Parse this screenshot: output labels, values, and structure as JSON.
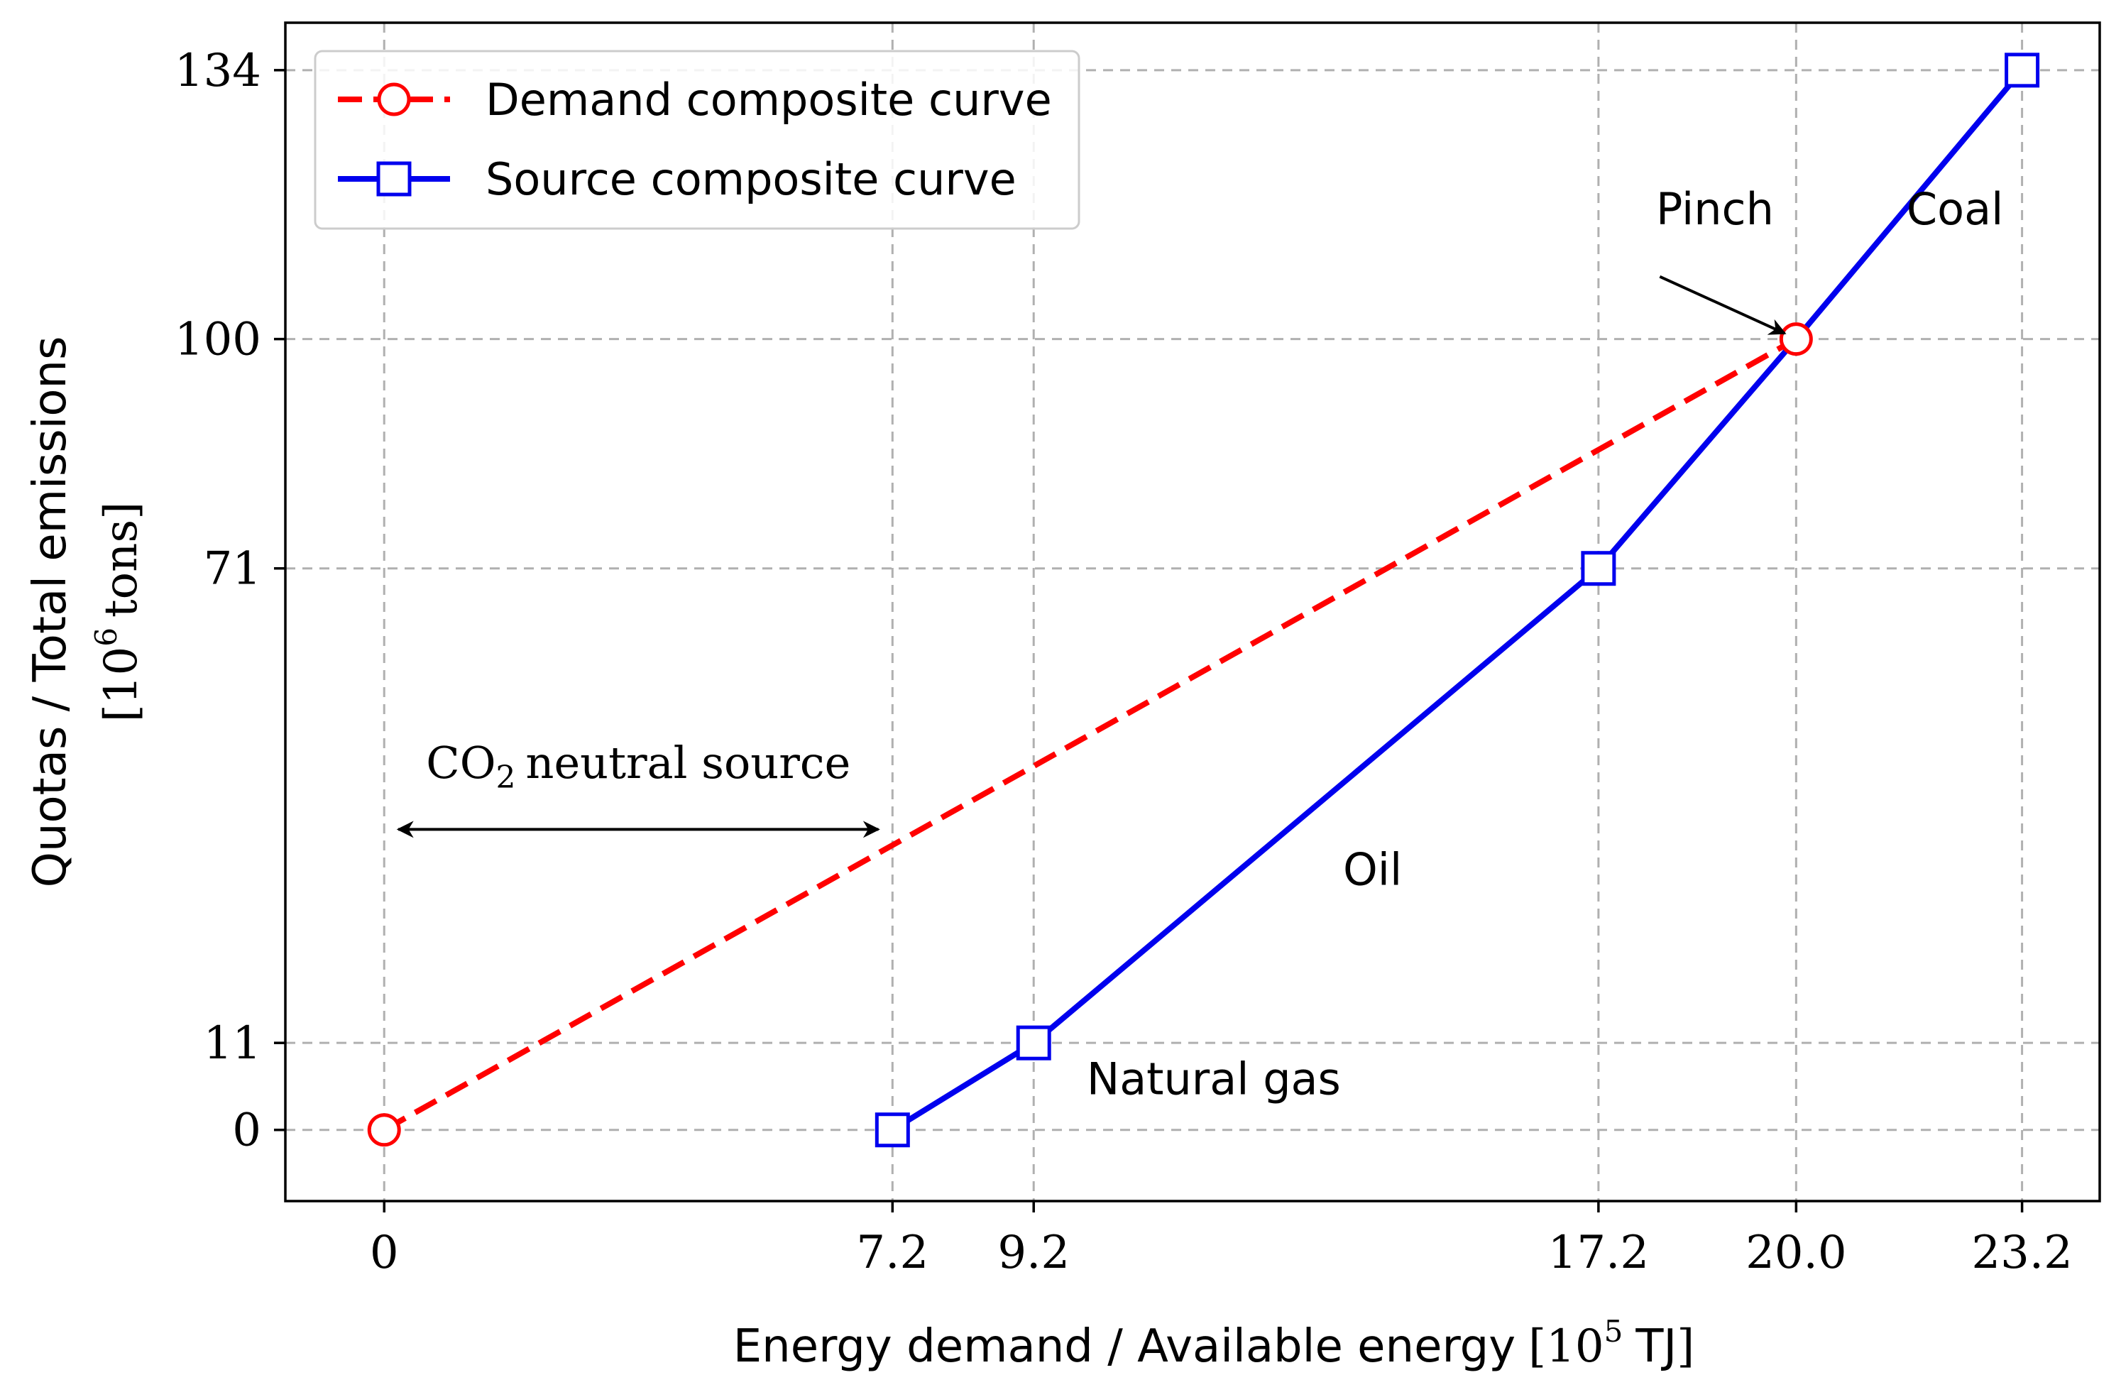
{
  "chart_data": {
    "type": "line",
    "xlabel": "Energy demand / Available energy",
    "xlabel_unit_base": "10",
    "xlabel_unit_exp": "5",
    "xlabel_unit_tail": "TJ",
    "ylabel_line1": "Quotas / Total emissions",
    "ylabel_unit_base": "10",
    "ylabel_unit_exp": "6",
    "ylabel_unit_tail": "tons",
    "xlim": [
      -1.4,
      24.3
    ],
    "ylim": [
      -9,
      140
    ],
    "xticks": [
      0,
      7.2,
      9.2,
      17.2,
      20.0,
      23.2
    ],
    "xtick_labels": [
      "0",
      "7.2",
      "9.2",
      "17.2",
      "20.0",
      "23.2"
    ],
    "yticks": [
      0,
      11,
      71,
      100,
      134
    ],
    "ytick_labels": [
      "0",
      "11",
      "71",
      "100",
      "134"
    ],
    "grid": true,
    "legend_position": "top-left",
    "series": [
      {
        "name": "Demand composite curve",
        "color": "#ff0000",
        "style": "dashed",
        "marker": "circle",
        "x": [
          0,
          20.0
        ],
        "y": [
          0,
          100
        ]
      },
      {
        "name": "Source composite curve",
        "color": "#0000ee",
        "style": "solid",
        "marker": "square",
        "x": [
          7.2,
          9.2,
          17.2,
          20.0,
          23.2
        ],
        "y": [
          0,
          11,
          71,
          100,
          134
        ],
        "marker_indices": [
          0,
          1,
          2,
          4
        ]
      }
    ],
    "annotations": {
      "pinch": "Pinch",
      "coal": "Coal",
      "oil": "Oil",
      "natural_gas": "Natural gas",
      "co2_prefix": "CO",
      "co2_sub": "2",
      "co2_suffix": "neutral source"
    },
    "pinch_point": {
      "x": 20.0,
      "y": 100
    },
    "co2_range": [
      0.2,
      7.0
    ]
  }
}
